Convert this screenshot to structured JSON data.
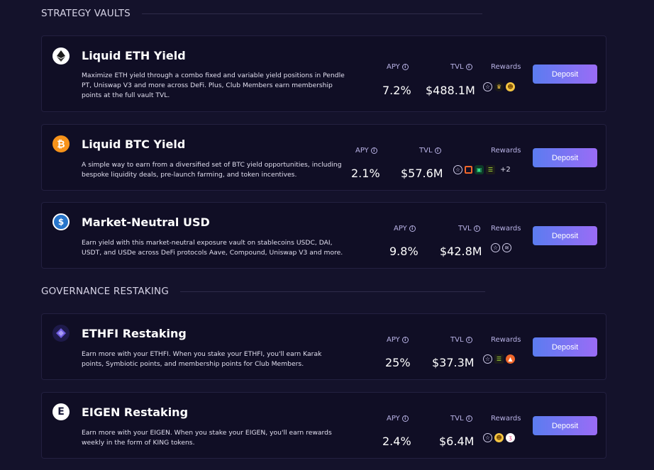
{
  "sections": {
    "strategy": {
      "title": "STRATEGY VAULTS"
    },
    "governance": {
      "title": "GOVERNANCE RESTAKING"
    }
  },
  "labels": {
    "apy": "APY",
    "tvl": "TVL",
    "rewards": "Rewards",
    "deposit": "Deposit",
    "info_glyph": "i"
  },
  "vaults": [
    {
      "title": "Liquid ETH Yield",
      "description": "Maximize ETH yield through a combo fixed and variable yield positions in Pendle PT, Uniswap V3 and more across DeFi. Plus, Club Members earn membership points at the full vault TVL.",
      "apy": "7.2%",
      "tvl": "$488.1M",
      "icon": "ethereum-icon",
      "rewards_icons": [
        "star-icon",
        "crown-icon",
        "gold-token-icon"
      ]
    },
    {
      "title": "Liquid BTC Yield",
      "description": "A simple way to earn from a diversified set of BTC yield opportunities, including bespoke liquidity deals, pre-launch farming, and token incentives.",
      "apy": "2.1%",
      "tvl": "$57.6M",
      "icon": "bitcoin-icon",
      "rewards_icons": [
        "star-icon",
        "orange-frame-icon",
        "green-squares-icon",
        "green-stack-icon"
      ],
      "rewards_extra": "+2"
    },
    {
      "title": "Market-Neutral USD",
      "description": "Earn yield with this market-neutral exposure vault on stablecoins USDC, DAI, USDT, and USDe across DeFi protocols Aave, Compound, Uniswap V3 and more.",
      "apy": "9.8%",
      "tvl": "$42.8M",
      "icon": "usdc-icon",
      "rewards_icons": [
        "star-icon",
        "layers-icon"
      ]
    },
    {
      "title": "ETHFI Restaking",
      "description": "Earn more with your ETHFI. When you stake your ETHFI, you'll earn Karak points, Symbiotic points, and membership points for Club Members.",
      "apy": "25%",
      "tvl": "$37.3M",
      "icon": "ethfi-icon",
      "rewards_icons": [
        "star-icon",
        "green-stack-icon",
        "orange-arrow-icon"
      ]
    },
    {
      "title": "EIGEN Restaking",
      "description": "Earn more with your EIGEN. When you stake your EIGEN, you'll earn rewards weekly in the form of KING tokens.",
      "apy": "2.4%",
      "tvl": "$6.4M",
      "icon": "eigen-icon",
      "rewards_icons": [
        "star-icon",
        "gold-token-icon",
        "pink-swirl-icon"
      ]
    }
  ],
  "colors": {
    "background": "#14122b",
    "card": "#100e25",
    "accent_from": "#5b7cf0",
    "accent_to": "#9a6cf6",
    "label": "#b9b3e6"
  }
}
